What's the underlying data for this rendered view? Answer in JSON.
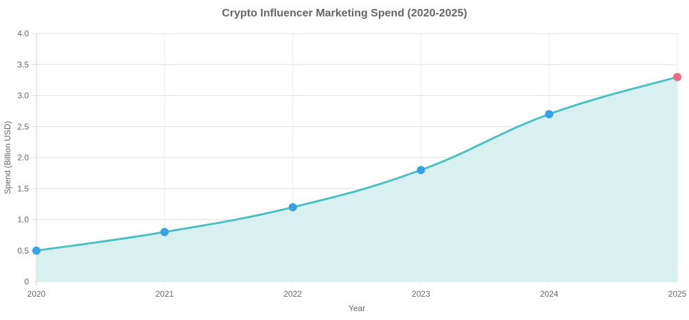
{
  "chart_data": {
    "type": "area",
    "title": "Crypto Influencer Marketing Spend (2020-2025)",
    "xlabel": "Year",
    "ylabel": "Spend (Billion USD)",
    "categories": [
      "2020",
      "2021",
      "2022",
      "2023",
      "2024",
      "2025"
    ],
    "series": [
      {
        "name": "Spend",
        "values": [
          0.5,
          0.8,
          1.2,
          1.8,
          2.7,
          3.3
        ]
      }
    ],
    "ylim": [
      0,
      4
    ],
    "yticks": [
      "0",
      "0.5",
      "1.0",
      "1.5",
      "2.0",
      "2.5",
      "3.0",
      "3.5",
      "4.0"
    ],
    "grid": true,
    "colors": {
      "line": "#4bc0c0",
      "fill": "#d9f0f0",
      "point": "#36a2eb",
      "highlight_point": "#ff6384"
    }
  }
}
